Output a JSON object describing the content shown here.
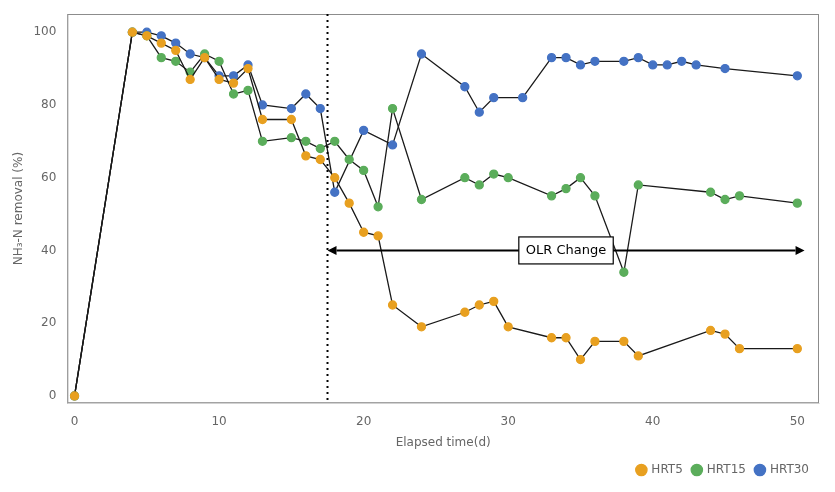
{
  "chart_data": {
    "type": "line",
    "x_label": "Elapsed time(d)",
    "y_label": "NH₃-N removal (%)",
    "color": "#1a1a1a",
    "marker": "circle",
    "series": [
      {
        "name": "HRT5",
        "color": "#E8A020",
        "x": [
          0,
          4,
          5,
          6,
          7,
          8,
          9,
          10,
          11,
          12,
          13,
          15,
          16,
          17,
          18,
          19,
          20,
          21,
          22,
          24,
          27,
          28,
          29,
          30,
          33,
          34,
          35,
          36,
          38,
          39,
          44,
          45,
          46,
          50
        ],
        "values": [
          0,
          100,
          99,
          97,
          95,
          87,
          93,
          87,
          86,
          90,
          76,
          76,
          66,
          65,
          60,
          53,
          45,
          44,
          25,
          19,
          23,
          25,
          26,
          19,
          16,
          16,
          10,
          15,
          15,
          11,
          18,
          17,
          13,
          13
        ]
      },
      {
        "name": "HRT15",
        "color": "#5BAD5B",
        "x": [
          0,
          4,
          5,
          6,
          7,
          8,
          9,
          10,
          11,
          12,
          13,
          15,
          16,
          17,
          18,
          19,
          20,
          21,
          22,
          24,
          27,
          28,
          29,
          30,
          33,
          34,
          35,
          36,
          38,
          39,
          44,
          45,
          46,
          50
        ],
        "values": [
          0,
          100,
          99,
          93,
          92,
          89,
          94,
          92,
          83,
          84,
          70,
          71,
          70,
          68,
          70,
          65,
          62,
          52,
          79,
          54,
          60,
          58,
          61,
          60,
          55,
          57,
          60,
          55,
          34,
          58,
          56,
          54,
          55,
          53
        ]
      },
      {
        "name": "HRT30",
        "color": "#4472C4",
        "x": [
          0,
          4,
          5,
          6,
          7,
          8,
          9,
          10,
          11,
          12,
          13,
          15,
          16,
          17,
          18,
          20,
          22,
          24,
          27,
          28,
          29,
          31,
          33,
          34,
          35,
          36,
          38,
          39,
          40,
          41,
          42,
          43,
          45,
          50
        ],
        "values": [
          0,
          100,
          100,
          99,
          97,
          94,
          93,
          88,
          88,
          91,
          80,
          79,
          83,
          79,
          56,
          73,
          69,
          94,
          85,
          78,
          82,
          82,
          93,
          93,
          91,
          92,
          92,
          93,
          91,
          91,
          92,
          91,
          90,
          88
        ]
      }
    ],
    "annotations": [
      {
        "type": "vline",
        "x": 17.5,
        "line_style": "dotted"
      },
      {
        "type": "arrow",
        "x": [
          17.5,
          50.5
        ],
        "y": 40
      },
      {
        "type": "text",
        "text": "OLR Change",
        "x": 34,
        "y": 40
      }
    ],
    "xlim": [
      -0.5,
      51.5
    ],
    "ylim": [
      -2,
      105
    ],
    "xticks": [
      0,
      10,
      20,
      30,
      40,
      50
    ],
    "yticks": [
      0,
      20,
      40,
      60,
      80,
      100
    ],
    "grid": false,
    "legend": "lower right"
  }
}
